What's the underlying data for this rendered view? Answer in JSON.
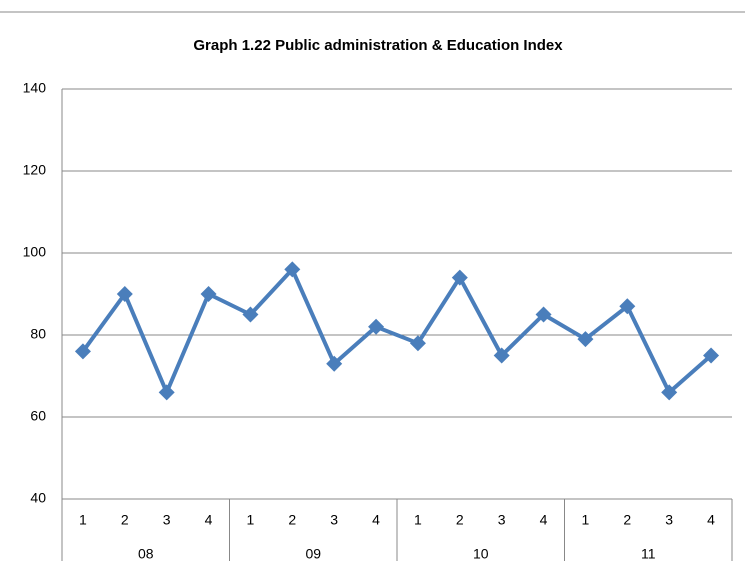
{
  "chart_data": {
    "type": "line",
    "title": "Graph 1.22 Public administration & Education Index",
    "categories": [
      "1",
      "2",
      "3",
      "4",
      "1",
      "2",
      "3",
      "4",
      "1",
      "2",
      "3",
      "4",
      "1",
      "2",
      "3",
      "4"
    ],
    "groups": [
      "08",
      "09",
      "10",
      "11"
    ],
    "series": [
      {
        "name": "Public administration & Education Index",
        "color": "#4a7ebb",
        "values": [
          76,
          90,
          66,
          90,
          85,
          96,
          73,
          82,
          78,
          94,
          75,
          85,
          79,
          87,
          66,
          75
        ]
      }
    ],
    "ylim": [
      40,
      140
    ],
    "yticks": [
      40,
      60,
      80,
      100,
      120,
      140
    ],
    "grid": true
  }
}
